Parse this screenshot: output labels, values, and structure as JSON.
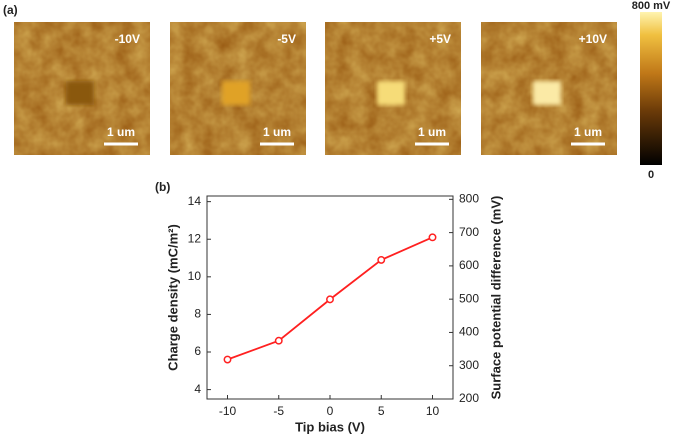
{
  "panel_a": {
    "label": "(a)",
    "images": [
      {
        "label": "-10V",
        "scale_bar": "1 um"
      },
      {
        "label": "-5V",
        "scale_bar": "1 um"
      },
      {
        "label": "+5V",
        "scale_bar": "1 um"
      },
      {
        "label": "+10V",
        "scale_bar": "1 um"
      }
    ],
    "colorbar": {
      "max_label": "800 mV",
      "min_label": "0"
    }
  },
  "chart_data": {
    "type": "line",
    "label": "(b)",
    "x": [
      -10,
      -5,
      0,
      5,
      10
    ],
    "series": [
      {
        "name": "Charge density",
        "color": "#ff2020",
        "values": [
          5.6,
          6.6,
          8.8,
          10.9,
          12.1
        ]
      }
    ],
    "xlim": [
      -12,
      12
    ],
    "xticks": [
      -10,
      -5,
      0,
      5,
      10
    ],
    "ylim": [
      3.5,
      14.3
    ],
    "yticks": [
      4,
      6,
      8,
      10,
      12,
      14
    ],
    "y2lim": [
      200,
      810
    ],
    "y2ticks": [
      200,
      300,
      400,
      500,
      600,
      700,
      800
    ],
    "xlabel": "Tip bias (V)",
    "ylabel": "Charge density (mC/m²)",
    "y2label": "Surface potential difference (mV)"
  }
}
